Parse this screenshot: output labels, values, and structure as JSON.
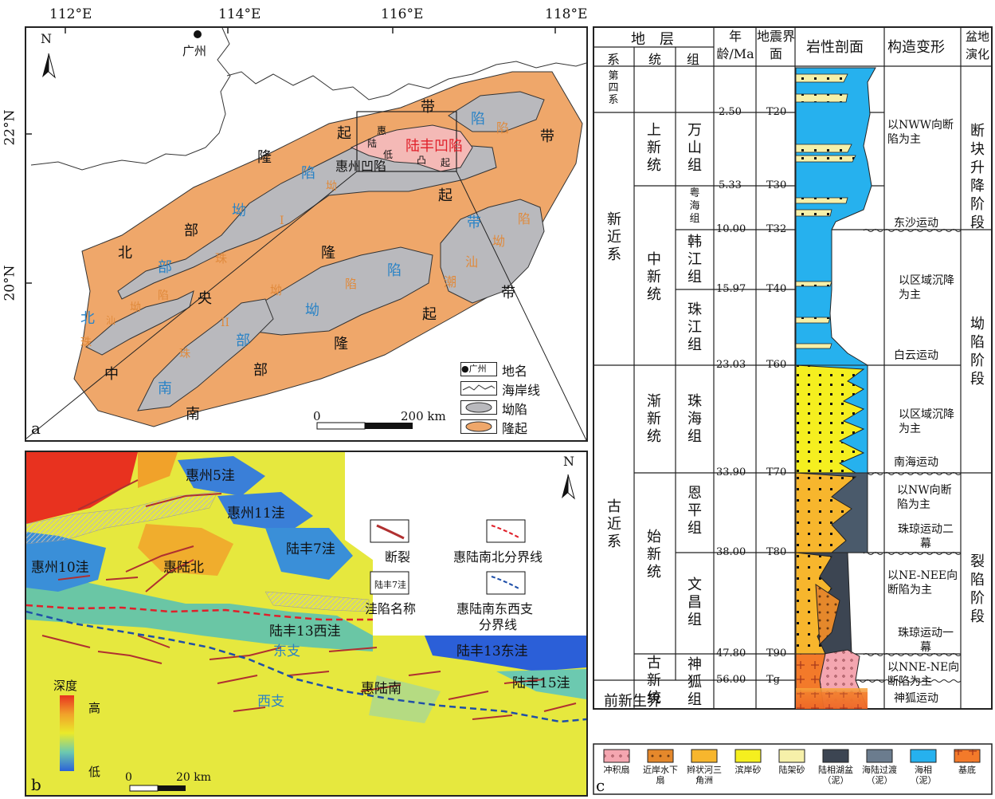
{
  "panel_a": {
    "lon_ticks": [
      "112°E",
      "114°E",
      "116°E",
      "118°E"
    ],
    "lat_ticks": [
      "22°N",
      "20°N"
    ],
    "north": "N",
    "city": "广州",
    "letter": "a",
    "labels": [
      {
        "t": "带",
        "c": "#111"
      },
      {
        "t": "陷",
        "c": "#2a83c6"
      },
      {
        "t": "陷",
        "c": "#e08a3c"
      },
      {
        "t": "带",
        "c": "#111"
      },
      {
        "t": "起",
        "c": "#111"
      },
      {
        "t": "惠",
        "c": "#111"
      },
      {
        "t": "陆",
        "c": "#111"
      },
      {
        "t": "低",
        "c": "#111"
      },
      {
        "t": "凸",
        "c": "#111"
      },
      {
        "t": "起",
        "c": "#111"
      },
      {
        "t": "陆丰凹陷",
        "c": "#e0202a"
      },
      {
        "t": "隆",
        "c": "#111"
      },
      {
        "t": "陷",
        "c": "#2a83c6"
      },
      {
        "t": "惠州凹陷",
        "c": "#111"
      },
      {
        "t": "坳",
        "c": "#e08a3c"
      },
      {
        "t": "起",
        "c": "#111"
      },
      {
        "t": "带",
        "c": "#2a83c6"
      },
      {
        "t": "陷",
        "c": "#e08a3c"
      },
      {
        "t": "坳",
        "c": "#e08a3c"
      },
      {
        "t": "部",
        "c": "#111"
      },
      {
        "t": "坳",
        "c": "#2a83c6"
      },
      {
        "t": "I",
        "c": "#e08a3c"
      },
      {
        "t": "北",
        "c": "#111"
      },
      {
        "t": "部",
        "c": "#2a83c6"
      },
      {
        "t": "珠",
        "c": "#e08a3c"
      },
      {
        "t": "隆",
        "c": "#111"
      },
      {
        "t": "陷",
        "c": "#2a83c6"
      },
      {
        "t": "汕",
        "c": "#e08a3c"
      },
      {
        "t": "陷",
        "c": "#e08a3c"
      },
      {
        "t": "潮",
        "c": "#e08a3c"
      },
      {
        "t": "带",
        "c": "#111"
      },
      {
        "t": "陷",
        "c": "#e08a3c"
      },
      {
        "t": "坳",
        "c": "#e08a3c"
      },
      {
        "t": "央",
        "c": "#111"
      },
      {
        "t": "坳",
        "c": "#2a83c6"
      },
      {
        "t": "北",
        "c": "#2a83c6"
      },
      {
        "t": "坳",
        "c": "#e08a3c"
      },
      {
        "t": "汕",
        "c": "#e08a3c"
      },
      {
        "t": "起",
        "c": "#111"
      },
      {
        "t": "珠",
        "c": "#e08a3c"
      },
      {
        "t": "II",
        "c": "#e08a3c"
      },
      {
        "t": "部",
        "c": "#2a83c6"
      },
      {
        "t": "隆",
        "c": "#111"
      },
      {
        "t": "中",
        "c": "#111"
      },
      {
        "t": "珠",
        "c": "#e08a3c"
      },
      {
        "t": "部",
        "c": "#111"
      },
      {
        "t": "南",
        "c": "#2a83c6"
      },
      {
        "t": "南",
        "c": "#111"
      }
    ],
    "legend": {
      "place": "地名",
      "coast": "海岸线",
      "depression": "坳陷",
      "uplift": "隆起",
      "city_sample": "广州"
    },
    "scale": {
      "zero": "0",
      "length": "200 km"
    },
    "colors": {
      "uplift": "#efa76a",
      "depression": "#b9b9bd",
      "luf": "#f4b9b6"
    }
  },
  "panel_b": {
    "letter": "b",
    "north": "N",
    "labels": [
      "惠州5洼",
      "惠州11洼",
      "陆丰7洼",
      "惠州10洼",
      "惠陆北",
      "陆丰13西洼",
      "东支",
      "陆丰13东洼",
      "惠陆南",
      "陆丰15洼",
      "西支"
    ],
    "legend": {
      "fault": "断裂",
      "boundary_ns": "惠陆南北分界线",
      "sag_name_sample": "陆丰7洼",
      "sag_name": "洼陷名称",
      "boundary_ew_1": "惠陆南东西支",
      "boundary_ew_2": "分界线"
    },
    "depth": {
      "title": "深度",
      "high": "高",
      "low": "低"
    },
    "scale": {
      "zero": "0",
      "length": "20 km"
    }
  },
  "panel_c": {
    "letter": "c",
    "header": {
      "strata": "地　层",
      "age": "年龄/Ma",
      "seismic": "地震界面",
      "lith": "岩性剖面",
      "tect": "构造变形",
      "basin": "盆地演化",
      "sys": "系",
      "ser": "统",
      "fm": "组"
    },
    "systems": [
      "第四系",
      "新近系",
      "古近系"
    ],
    "series": [
      "上新统",
      "中新统",
      "渐新统",
      "始新统",
      "古新统"
    ],
    "formations": [
      "万山组",
      "粤海组",
      "韩江组",
      "珠江组",
      "珠海组",
      "恩平组",
      "文昌组",
      "神狐组"
    ],
    "pre_cenozoic": "前新生界",
    "ages": [
      "2.50",
      "5.33",
      "10.00",
      "15.97",
      "23.03",
      "33.90",
      "38.00",
      "47.80",
      "56.00"
    ],
    "horizons": [
      "T20",
      "T30",
      "T32",
      "T40",
      "T60",
      "T70",
      "T80",
      "T90",
      "Tg"
    ],
    "tectonics": [
      "以NWW向断陷为主",
      "东沙运动",
      "以区域沉降为主",
      "白云运动",
      "以区域沉降为主",
      "南海运动",
      "以NW向断陷为主",
      "珠琼运动二幕",
      "以NE-NEE向断陷为主",
      "珠琼运动一幕",
      "以NNE-NE向断陷为主",
      "神狐运动"
    ],
    "stages": [
      "断块升降阶段",
      "坳陷阶段",
      "裂陷阶段"
    ],
    "legend": [
      "冲积扇",
      "近岸水下扇",
      "辫状河三角洲",
      "滨岸砂",
      "陆架砂",
      "陆相湖盆（泥）",
      "海陆过渡（泥）",
      "海相（泥）",
      "基底"
    ]
  }
}
